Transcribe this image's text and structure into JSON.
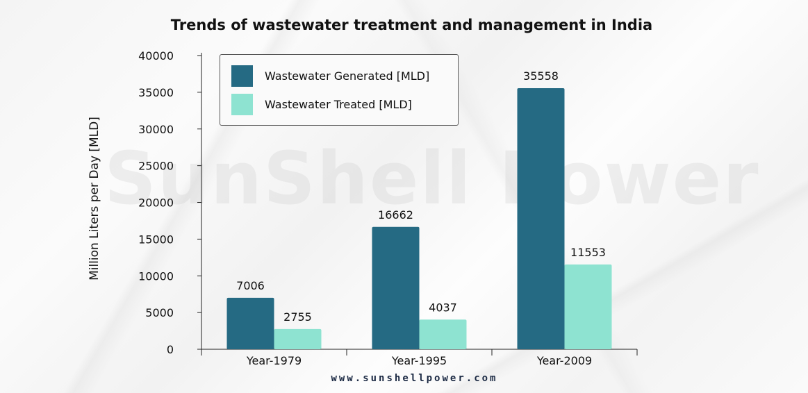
{
  "watermark": "SunShell Power",
  "footer": "www.sunshellpower.com",
  "colors": {
    "generated": "#256a83",
    "treated": "#8ee3d1",
    "text": "#111111"
  },
  "chart_data": {
    "type": "bar",
    "title": "Trends of wastewater treatment and management in India",
    "xlabel": "",
    "ylabel": "Million Liters per Day [MLD]",
    "categories": [
      "Year-1979",
      "Year-1995",
      "Year-2009"
    ],
    "series": [
      {
        "name": "Wastewater Generated [MLD]",
        "values": [
          7006,
          16662,
          35558
        ]
      },
      {
        "name": "Wastewater Treated [MLD]",
        "values": [
          2755,
          4037,
          11553
        ]
      }
    ],
    "ylim": [
      0,
      40000
    ],
    "yticks": [
      0,
      5000,
      10000,
      15000,
      20000,
      25000,
      30000,
      35000,
      40000
    ],
    "legend_position": "top-left",
    "grid": false
  }
}
